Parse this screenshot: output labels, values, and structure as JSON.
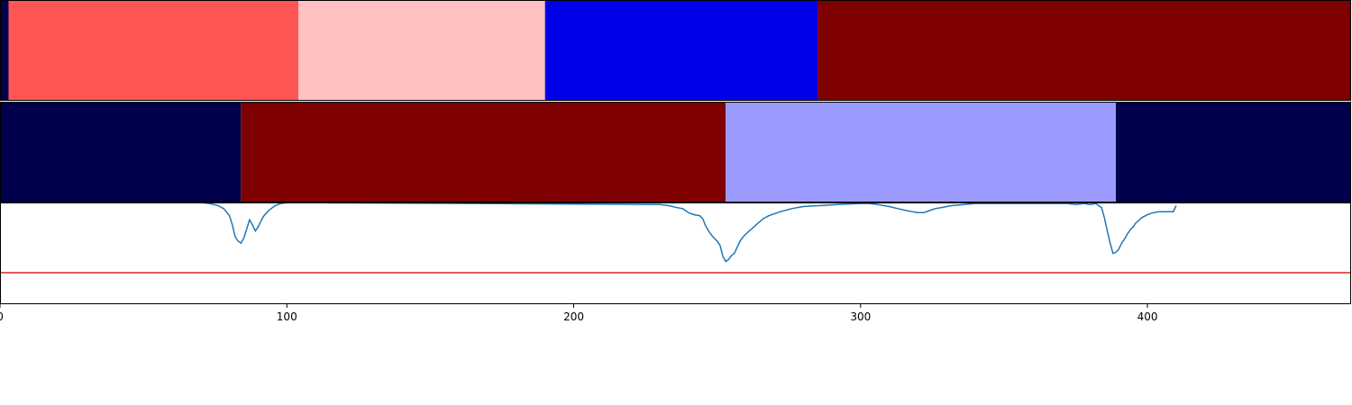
{
  "chart_data": {
    "type": "heatmap",
    "title": "",
    "xlabel": "",
    "ylabel": "",
    "xlim": [
      0,
      471
    ],
    "x_ticks": [
      0,
      100,
      200,
      300,
      400
    ],
    "grid": false,
    "legend": "none",
    "segment_rows": [
      {
        "name": "",
        "segments": [
          {
            "start": 0,
            "end": 3,
            "color": "#00004c"
          },
          {
            "start": 3,
            "end": 104,
            "color": "#ff5555"
          },
          {
            "start": 104,
            "end": 190,
            "color": "#ffc1c1"
          },
          {
            "start": 190,
            "end": 285,
            "color": "#0000e8"
          },
          {
            "start": 285,
            "end": 471,
            "color": "#7f0000"
          }
        ]
      },
      {
        "name": "",
        "segments": [
          {
            "start": 0,
            "end": 84,
            "color": "#00004c"
          },
          {
            "start": 84,
            "end": 253,
            "color": "#7f0000"
          },
          {
            "start": 253,
            "end": 389,
            "color": "#9a9aff"
          },
          {
            "start": 389,
            "end": 471,
            "color": "#00004c"
          }
        ]
      }
    ],
    "line_panel": {
      "ylim": [
        0,
        1
      ],
      "threshold": 0.31,
      "threshold_color": "#d62728",
      "series": {
        "color": "#1f77b4",
        "x": [
          70,
          73,
          76,
          78,
          80,
          81,
          82,
          83,
          84,
          85,
          86,
          87,
          88,
          89,
          90,
          91,
          92,
          93,
          94,
          96,
          98,
          100,
          230,
          233,
          236,
          238,
          240,
          242,
          244,
          245,
          246,
          247,
          248,
          249,
          250,
          251,
          252,
          253,
          254,
          255,
          256,
          257,
          258,
          259,
          260,
          262,
          264,
          266,
          268,
          272,
          276,
          280,
          286,
          292,
          300,
          303,
          306,
          310,
          313,
          316,
          318,
          320,
          322,
          324,
          326,
          328,
          330,
          332,
          336,
          340,
          346,
          352,
          360,
          368,
          372,
          375,
          378,
          380,
          382,
          383,
          384,
          385,
          386,
          387,
          388,
          389,
          390,
          391,
          392,
          393,
          394,
          395,
          396,
          398,
          400,
          402,
          404,
          406,
          408,
          409,
          410
        ],
        "y": [
          1.0,
          0.99,
          0.97,
          0.94,
          0.87,
          0.78,
          0.66,
          0.62,
          0.6,
          0.65,
          0.74,
          0.83,
          0.78,
          0.72,
          0.76,
          0.82,
          0.87,
          0.9,
          0.93,
          0.97,
          0.99,
          1.0,
          0.98,
          0.97,
          0.95,
          0.94,
          0.9,
          0.88,
          0.87,
          0.84,
          0.77,
          0.72,
          0.68,
          0.65,
          0.62,
          0.58,
          0.47,
          0.42,
          0.44,
          0.48,
          0.5,
          0.56,
          0.62,
          0.66,
          0.69,
          0.74,
          0.79,
          0.84,
          0.87,
          0.91,
          0.94,
          0.96,
          0.97,
          0.98,
          0.99,
          0.99,
          0.98,
          0.96,
          0.94,
          0.92,
          0.91,
          0.9,
          0.9,
          0.92,
          0.94,
          0.95,
          0.96,
          0.97,
          0.98,
          0.99,
          0.99,
          0.99,
          0.99,
          0.99,
          0.99,
          0.98,
          0.99,
          0.98,
          0.99,
          0.97,
          0.95,
          0.85,
          0.72,
          0.6,
          0.5,
          0.51,
          0.54,
          0.6,
          0.64,
          0.69,
          0.73,
          0.76,
          0.8,
          0.85,
          0.88,
          0.9,
          0.91,
          0.91,
          0.91,
          0.91,
          0.97
        ]
      }
    }
  }
}
